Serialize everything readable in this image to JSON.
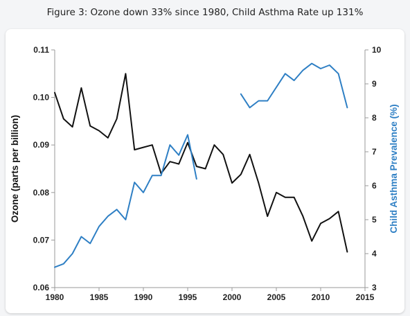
{
  "caption": "Figure 3: Ozone down 33% since 1980, Child Asthma Rate up 131%",
  "chart_data": {
    "type": "line",
    "title": "Figure 3: Ozone down 33% since 1980, Child Asthma Rate up 131%",
    "xlabel": "",
    "ylabel": "Ozone (parts per billion)",
    "y2label": "Child Asthma Prevalence (%)",
    "xlim": [
      1980,
      2015
    ],
    "ylim": [
      0.06,
      0.11
    ],
    "y2lim": [
      3,
      10
    ],
    "x_ticks": [
      1980,
      1985,
      1990,
      1995,
      2000,
      2005,
      2010,
      2015
    ],
    "y_ticks": [
      "0.06",
      "0.07",
      "0.08",
      "0.09",
      "0.10",
      "0.11"
    ],
    "y2_ticks": [
      "3",
      "4",
      "5",
      "6",
      "7",
      "8",
      "9",
      "10"
    ],
    "grid": false,
    "series": [
      {
        "axis": "left",
        "color": "#111111",
        "x": [
          1980,
          1981,
          1982,
          1983,
          1984,
          1985,
          1986,
          1987,
          1988,
          1989,
          1990,
          1991,
          1992,
          1993,
          1994,
          1995,
          1996,
          1997,
          1998,
          1999,
          2000,
          2001,
          2002,
          2003,
          2004,
          2005,
          2006,
          2007,
          2008,
          2009,
          2010,
          2011,
          2012,
          2013
        ],
        "values": [
          0.101,
          0.0955,
          0.0938,
          0.102,
          0.094,
          0.093,
          0.0915,
          0.0955,
          0.105,
          0.089,
          0.0895,
          0.09,
          0.084,
          0.0865,
          0.086,
          0.0905,
          0.0855,
          0.085,
          0.09,
          0.088,
          0.082,
          0.0838,
          0.088,
          0.082,
          0.075,
          0.08,
          0.079,
          0.079,
          0.075,
          0.0698,
          0.0735,
          0.0745,
          0.076,
          0.0675
        ]
      },
      {
        "axis": "right",
        "color": "#2e7fc4",
        "x": [
          1980,
          1981,
          1982,
          1983,
          1984,
          1985,
          1986,
          1987,
          1988,
          1989,
          1990,
          1991,
          1992,
          1993,
          1994,
          1995,
          1996
        ],
        "values": [
          3.6,
          3.7,
          4.0,
          4.5,
          4.3,
          4.8,
          5.1,
          5.3,
          5.0,
          6.1,
          5.8,
          6.3,
          6.3,
          7.2,
          6.9,
          7.5,
          6.2
        ]
      },
      {
        "axis": "right",
        "color": "#2e7fc4",
        "x": [
          2001,
          2002,
          2003,
          2004,
          2005,
          2006,
          2007,
          2008,
          2009,
          2010,
          2011,
          2012,
          2013
        ],
        "values": [
          8.7,
          8.3,
          8.5,
          8.5,
          8.9,
          9.3,
          9.1,
          9.4,
          9.6,
          9.45,
          9.55,
          9.3,
          8.3
        ]
      }
    ]
  }
}
